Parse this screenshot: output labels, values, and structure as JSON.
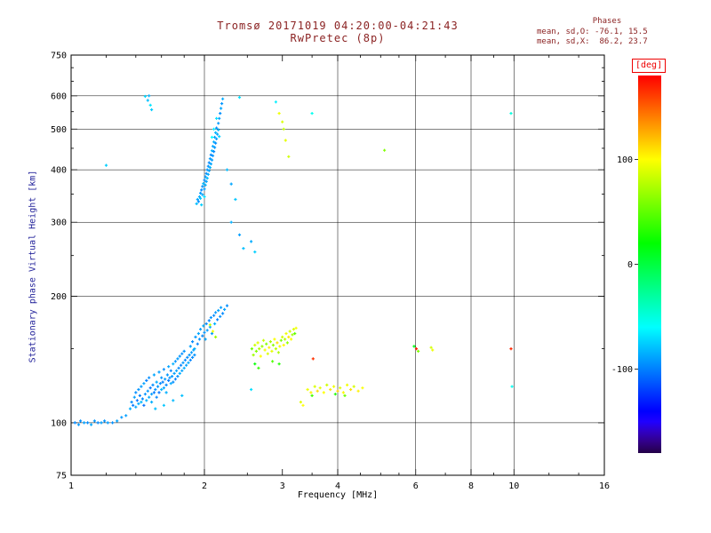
{
  "title": "Tromsø 20171019 04:20:00-04:21:43",
  "subtitle": "RwPretec (8p)",
  "phases": {
    "heading": "Phases",
    "line_o": "mean, sd,O: -76.1, 15.5",
    "line_x": "mean, sd,X:  86.2, 23.7"
  },
  "colorbar": {
    "unit": "[deg]",
    "min": -180,
    "max": 180,
    "ticks": [
      100,
      0,
      -100
    ]
  },
  "chart_data": {
    "type": "scatter",
    "title": "Tromsø 20171019 04:20:00-04:21:43",
    "subtitle": "RwPretec (8p)",
    "xlabel": "Frequency [MHz]",
    "ylabel": "Stationary phase Virtual Height [km]",
    "x_scale": "log",
    "y_scale": "log",
    "xlim": [
      1,
      16
    ],
    "ylim": [
      75,
      750
    ],
    "x_ticks": [
      1,
      2,
      3,
      4,
      6,
      8,
      10,
      16
    ],
    "y_ticks": [
      75,
      100,
      200,
      300,
      400,
      500,
      600,
      750
    ],
    "x_minor_ticks": [
      1.2,
      1.4,
      1.6,
      1.8,
      2.5,
      3.5,
      4.5,
      5,
      5.5,
      7,
      9,
      12,
      14
    ],
    "y_minor_ticks": [
      150,
      250,
      350,
      450,
      550,
      650,
      700
    ],
    "x_gridlines": [
      2,
      4,
      6,
      8,
      10
    ],
    "y_gridlines": [
      100,
      200,
      300,
      400,
      500,
      600
    ],
    "grid": true,
    "color_scale": {
      "label": "[deg]",
      "min": -180,
      "max": 180,
      "ticks": [
        100,
        0,
        -100
      ]
    },
    "point_format": [
      "frequency_MHz",
      "virtual_height_km",
      "phase_deg"
    ],
    "points": [
      [
        1.02,
        100,
        -98
      ],
      [
        1.04,
        99,
        -92
      ],
      [
        1.05,
        101,
        -95
      ],
      [
        1.07,
        100,
        -90
      ],
      [
        1.09,
        100,
        -96
      ],
      [
        1.11,
        99,
        -88
      ],
      [
        1.13,
        101,
        -93
      ],
      [
        1.15,
        100,
        -97
      ],
      [
        1.17,
        100,
        -90
      ],
      [
        1.19,
        101,
        -94
      ],
      [
        1.21,
        100,
        -91
      ],
      [
        1.24,
        100,
        -95
      ],
      [
        1.27,
        101,
        -89
      ],
      [
        1.3,
        103,
        -93
      ],
      [
        1.33,
        104,
        -90
      ],
      [
        1.55,
        108,
        -80
      ],
      [
        1.62,
        110,
        -78
      ],
      [
        1.7,
        113,
        -82
      ],
      [
        1.78,
        116,
        -80
      ],
      [
        1.36,
        108,
        -85
      ],
      [
        1.37,
        112,
        -95
      ],
      [
        1.38,
        110,
        -102
      ],
      [
        1.39,
        115,
        -90
      ],
      [
        1.4,
        109,
        -88
      ],
      [
        1.4,
        118,
        -96
      ],
      [
        1.41,
        113,
        -104
      ],
      [
        1.42,
        111,
        -86
      ],
      [
        1.42,
        120,
        -93
      ],
      [
        1.43,
        116,
        -99
      ],
      [
        1.44,
        112,
        -82
      ],
      [
        1.44,
        122,
        -91
      ],
      [
        1.45,
        114,
        -97
      ],
      [
        1.46,
        110,
        -105
      ],
      [
        1.46,
        124,
        -89
      ],
      [
        1.47,
        117,
        -94
      ],
      [
        1.48,
        113,
        -84
      ],
      [
        1.48,
        126,
        -100
      ],
      [
        1.49,
        119,
        -92
      ],
      [
        1.5,
        115,
        -87
      ],
      [
        1.5,
        128,
        -96
      ],
      [
        1.51,
        121,
        -103
      ],
      [
        1.52,
        117,
        -90
      ],
      [
        1.52,
        112,
        -85
      ],
      [
        1.53,
        123,
        -95
      ],
      [
        1.54,
        118,
        -101
      ],
      [
        1.54,
        130,
        -88
      ],
      [
        1.55,
        120,
        -93
      ],
      [
        1.56,
        115,
        -98
      ],
      [
        1.56,
        125,
        -86
      ],
      [
        1.57,
        122,
        -92
      ],
      [
        1.58,
        118,
        -104
      ],
      [
        1.58,
        132,
        -90
      ],
      [
        1.59,
        124,
        -96
      ],
      [
        1.6,
        120,
        -83
      ],
      [
        1.6,
        128,
        -94
      ],
      [
        1.61,
        125,
        -100
      ],
      [
        1.62,
        121,
        -88
      ],
      [
        1.62,
        134,
        -95
      ],
      [
        1.63,
        127,
        -91
      ],
      [
        1.64,
        123,
        -97
      ],
      [
        1.64,
        118,
        -85
      ],
      [
        1.65,
        130,
        -93
      ],
      [
        1.66,
        126,
        -102
      ],
      [
        1.66,
        136,
        -89
      ],
      [
        1.67,
        128,
        -94
      ],
      [
        1.68,
        124,
        -86
      ],
      [
        1.68,
        133,
        -98
      ],
      [
        1.69,
        129,
        -92
      ],
      [
        1.7,
        125,
        -96
      ],
      [
        1.7,
        138,
        -84
      ],
      [
        1.71,
        131,
        -90
      ],
      [
        1.72,
        127,
        -100
      ],
      [
        1.72,
        140,
        -94
      ],
      [
        1.73,
        133,
        -88
      ],
      [
        1.74,
        129,
        -95
      ],
      [
        1.74,
        142,
        -91
      ],
      [
        1.75,
        135,
        -97
      ],
      [
        1.76,
        131,
        -85
      ],
      [
        1.76,
        144,
        -93
      ],
      [
        1.77,
        137,
        -99
      ],
      [
        1.78,
        133,
        -89
      ],
      [
        1.78,
        146,
        -96
      ],
      [
        1.79,
        139,
        -92
      ],
      [
        1.8,
        135,
        -86
      ],
      [
        1.8,
        148,
        -94
      ],
      [
        1.81,
        141,
        -98
      ],
      [
        1.82,
        137,
        -90
      ],
      [
        1.83,
        143,
        -95
      ],
      [
        1.84,
        139,
        -87
      ],
      [
        1.85,
        145,
        -93
      ],
      [
        1.86,
        141,
        -99
      ],
      [
        1.87,
        147,
        -91
      ],
      [
        1.88,
        143,
        -96
      ],
      [
        1.89,
        149,
        -88
      ],
      [
        1.9,
        145,
        -94
      ],
      [
        1.86,
        152,
        -90
      ],
      [
        1.88,
        156,
        -96
      ],
      [
        1.9,
        150,
        -85
      ],
      [
        1.91,
        160,
        -92
      ],
      [
        1.93,
        154,
        -99
      ],
      [
        1.94,
        163,
        -88
      ],
      [
        1.95,
        158,
        -94
      ],
      [
        1.96,
        167,
        -90
      ],
      [
        1.98,
        161,
        -97
      ],
      [
        1.99,
        170,
        -86
      ],
      [
        2.0,
        164,
        -93
      ],
      [
        2.01,
        158,
        -89
      ],
      [
        2.02,
        172,
        -95
      ],
      [
        2.03,
        166,
        -91
      ],
      [
        2.05,
        175,
        -98
      ],
      [
        2.06,
        169,
        -87
      ],
      [
        2.07,
        178,
        -93
      ],
      [
        2.08,
        163,
        -90
      ],
      [
        2.1,
        180,
        -96
      ],
      [
        2.11,
        172,
        -84
      ],
      [
        2.12,
        183,
        -92
      ],
      [
        2.14,
        176,
        -99
      ],
      [
        2.15,
        185,
        -88
      ],
      [
        2.17,
        179,
        -94
      ],
      [
        2.18,
        188,
        -91
      ],
      [
        2.2,
        182,
        -97
      ],
      [
        2.22,
        186,
        -89
      ],
      [
        2.25,
        190,
        -95
      ],
      [
        2.06,
        171,
        80
      ],
      [
        2.09,
        165,
        95
      ],
      [
        2.12,
        160,
        70
      ],
      [
        1.92,
        332,
        -80
      ],
      [
        1.93,
        340,
        -88
      ],
      [
        1.94,
        336,
        -95
      ],
      [
        1.95,
        345,
        -85
      ],
      [
        1.96,
        352,
        -92
      ],
      [
        1.96,
        342,
        -78
      ],
      [
        1.97,
        358,
        -96
      ],
      [
        1.98,
        349,
        -87
      ],
      [
        1.98,
        365,
        -93
      ],
      [
        1.99,
        371,
        -82
      ],
      [
        2.0,
        360,
        -90
      ],
      [
        2.0,
        378,
        -97
      ],
      [
        2.01,
        368,
        -85
      ],
      [
        2.01,
        385,
        -91
      ],
      [
        2.02,
        375,
        -88
      ],
      [
        2.02,
        392,
        -95
      ],
      [
        2.03,
        382,
        -80
      ],
      [
        2.03,
        400,
        -92
      ],
      [
        2.04,
        390,
        -86
      ],
      [
        2.04,
        408,
        -94
      ],
      [
        2.05,
        398,
        -89
      ],
      [
        2.05,
        416,
        -96
      ],
      [
        2.06,
        405,
        -83
      ],
      [
        2.06,
        425,
        -91
      ],
      [
        2.07,
        413,
        -87
      ],
      [
        2.07,
        434,
        -95
      ],
      [
        2.08,
        422,
        -90
      ],
      [
        2.08,
        444,
        -84
      ],
      [
        2.09,
        432,
        -93
      ],
      [
        2.09,
        455,
        -88
      ],
      [
        2.1,
        442,
        -96
      ],
      [
        2.1,
        466,
        -86
      ],
      [
        2.11,
        452,
        -92
      ],
      [
        2.11,
        478,
        -89
      ],
      [
        2.12,
        463,
        -95
      ],
      [
        2.12,
        490,
        -83
      ],
      [
        2.13,
        474,
        -90
      ],
      [
        2.13,
        503,
        -94
      ],
      [
        2.14,
        486,
        -87
      ],
      [
        2.15,
        516,
        -92
      ],
      [
        2.15,
        498,
        -85
      ],
      [
        2.16,
        530,
        -90
      ],
      [
        2.17,
        545,
        -95
      ],
      [
        2.18,
        560,
        -88
      ],
      [
        2.19,
        575,
        -93
      ],
      [
        2.2,
        590,
        -86
      ],
      [
        2.08,
        478,
        -60
      ],
      [
        2.1,
        500,
        -65
      ],
      [
        2.13,
        530,
        -70
      ],
      [
        2.16,
        480,
        -75
      ],
      [
        1.97,
        330,
        -75
      ],
      [
        2.0,
        345,
        -70
      ],
      [
        2.25,
        400,
        -82
      ],
      [
        2.3,
        370,
        -88
      ],
      [
        2.35,
        340,
        -78
      ],
      [
        2.3,
        300,
        -85
      ],
      [
        2.4,
        280,
        -90
      ],
      [
        2.45,
        260,
        -80
      ],
      [
        2.55,
        270,
        -86
      ],
      [
        2.6,
        255,
        -75
      ],
      [
        2.95,
        545,
        95
      ],
      [
        3.0,
        520,
        88
      ],
      [
        3.02,
        500,
        80
      ],
      [
        3.05,
        470,
        92
      ],
      [
        3.1,
        430,
        85
      ],
      [
        2.4,
        595,
        -70
      ],
      [
        2.9,
        580,
        -65
      ],
      [
        3.5,
        545,
        -55
      ],
      [
        1.47,
        598,
        -72
      ],
      [
        1.49,
        585,
        -80
      ],
      [
        1.51,
        570,
        -68
      ],
      [
        1.52,
        556,
        -76
      ],
      [
        1.5,
        600,
        -85
      ],
      [
        1.2,
        410,
        -75
      ],
      [
        2.56,
        150,
        55
      ],
      [
        2.58,
        145,
        70
      ],
      [
        2.6,
        153,
        85
      ],
      [
        2.62,
        148,
        62
      ],
      [
        2.64,
        155,
        90
      ],
      [
        2.66,
        150,
        75
      ],
      [
        2.68,
        144,
        100
      ],
      [
        2.7,
        152,
        68
      ],
      [
        2.72,
        157,
        82
      ],
      [
        2.74,
        149,
        95
      ],
      [
        2.76,
        154,
        60
      ],
      [
        2.78,
        146,
        88
      ],
      [
        2.8,
        151,
        105
      ],
      [
        2.82,
        156,
        72
      ],
      [
        2.84,
        148,
        92
      ],
      [
        2.86,
        153,
        65
      ],
      [
        2.88,
        158,
        98
      ],
      [
        2.9,
        150,
        80
      ],
      [
        2.92,
        155,
        110
      ],
      [
        2.94,
        147,
        74
      ],
      [
        2.96,
        152,
        96
      ],
      [
        2.98,
        157,
        58
      ],
      [
        3.0,
        160,
        86
      ],
      [
        3.02,
        153,
        102
      ],
      [
        3.04,
        158,
        78
      ],
      [
        3.06,
        163,
        94
      ],
      [
        3.08,
        155,
        66
      ],
      [
        3.1,
        160,
        108
      ],
      [
        3.12,
        165,
        84
      ],
      [
        3.14,
        158,
        98
      ],
      [
        3.16,
        162,
        70
      ],
      [
        3.18,
        167,
        90
      ],
      [
        3.2,
        163,
        50
      ],
      [
        3.22,
        168,
        96
      ],
      [
        2.85,
        140,
        45
      ],
      [
        2.95,
        138,
        30
      ],
      [
        2.6,
        138,
        20
      ],
      [
        2.65,
        135,
        35
      ],
      [
        2.55,
        120,
        -70
      ],
      [
        3.42,
        120,
        95
      ],
      [
        3.48,
        118,
        105
      ],
      [
        3.55,
        122,
        88
      ],
      [
        3.6,
        119,
        112
      ],
      [
        3.65,
        121,
        92
      ],
      [
        3.72,
        118,
        100
      ],
      [
        3.78,
        123,
        85
      ],
      [
        3.85,
        120,
        108
      ],
      [
        3.92,
        122,
        95
      ],
      [
        4.0,
        119,
        115
      ],
      [
        4.05,
        121,
        90
      ],
      [
        4.12,
        118,
        102
      ],
      [
        4.2,
        123,
        96
      ],
      [
        4.28,
        120,
        110
      ],
      [
        4.35,
        122,
        87
      ],
      [
        4.45,
        119,
        104
      ],
      [
        4.55,
        121,
        98
      ],
      [
        3.5,
        116,
        40
      ],
      [
        3.95,
        117,
        30
      ],
      [
        4.15,
        116,
        55
      ],
      [
        3.3,
        112,
        90
      ],
      [
        3.34,
        110,
        100
      ],
      [
        3.52,
        142,
        165
      ],
      [
        5.95,
        152,
        15
      ],
      [
        6.02,
        150,
        170
      ],
      [
        6.08,
        148,
        60
      ],
      [
        6.5,
        151,
        85
      ],
      [
        6.55,
        149,
        95
      ],
      [
        9.85,
        150,
        168
      ],
      [
        9.9,
        122,
        -55
      ],
      [
        9.85,
        545,
        -50
      ],
      [
        5.1,
        445,
        60
      ]
    ]
  }
}
